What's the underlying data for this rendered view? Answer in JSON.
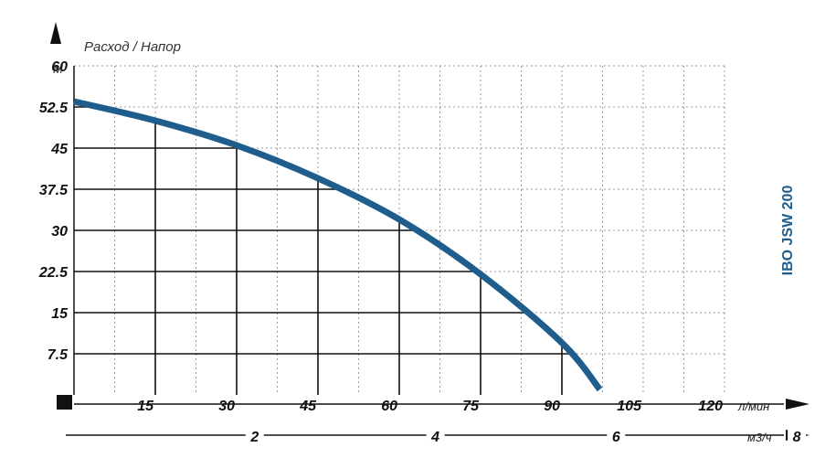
{
  "chart_data": {
    "type": "line",
    "title": "Расход / Напор",
    "y_unit": "М",
    "x_unit": "л/мин",
    "x2_unit": "м3/ч",
    "xlim": [
      0,
      120
    ],
    "ylim": [
      0,
      60
    ],
    "grid": true,
    "y_ticks": [
      "7.5",
      "15",
      "22.5",
      "30",
      "37.5",
      "45",
      "52.5",
      "60"
    ],
    "x_ticks": [
      "15",
      "30",
      "45",
      "60",
      "75",
      "90",
      "105",
      "120"
    ],
    "x2_ticks": [
      "2",
      "4",
      "6",
      "8"
    ],
    "series": [
      {
        "name": "IBO JSW 200",
        "color": "#1f5e8c",
        "x": [
          0,
          15,
          30,
          45,
          60,
          75,
          90,
          97
        ],
        "y": [
          53.5,
          50,
          45.5,
          39.5,
          32,
          22,
          9.5,
          1
        ]
      }
    ],
    "drop_lines": [
      {
        "x": 15,
        "y": 50
      },
      {
        "x": 30,
        "y": 45.5
      },
      {
        "x": 45,
        "y": 39.5
      },
      {
        "x": 60,
        "y": 32
      },
      {
        "x": 75,
        "y": 22
      },
      {
        "x": 90,
        "y": 9.5
      }
    ]
  }
}
